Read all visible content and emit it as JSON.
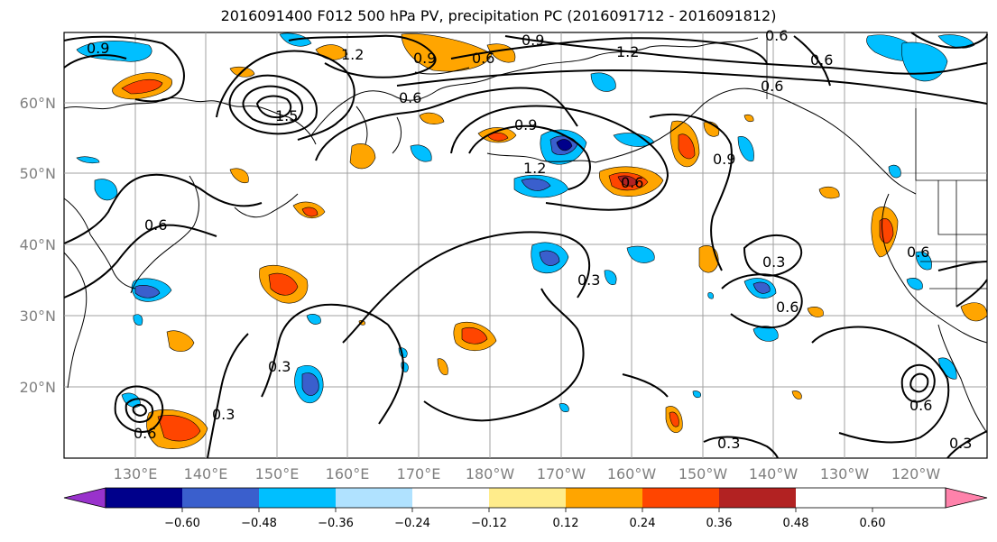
{
  "title": "2016091400 F012 500 hPa PV, precipitation PC (2016091712 - 2016091812)",
  "lat_labels": [
    "60°N",
    "50°N",
    "40°N",
    "30°N",
    "20°N"
  ],
  "lon_labels": [
    "130°E",
    "140°E",
    "150°E",
    "160°E",
    "170°E",
    "180°W",
    "170°W",
    "160°W",
    "150°W",
    "140°W",
    "130°W",
    "120°W"
  ],
  "contour_labels": [
    "0.9",
    "1.2",
    "0.9",
    "0.6",
    "1.2",
    "0.9",
    "0.6",
    "1.5",
    "0.6",
    "0.9",
    "0.6",
    "1.2",
    "0.6",
    "0.9",
    "0.6",
    "0.3",
    "0.6",
    "0.3",
    "0.3",
    "0.3",
    "0.6",
    "0.6",
    "0.3",
    "0.3",
    "0.6",
    "0.6"
  ],
  "colorbar": {
    "ticks": [
      "−0.60",
      "−0.48",
      "−0.36",
      "−0.24",
      "−0.12",
      "0.12",
      "0.24",
      "0.36",
      "0.48",
      "0.60"
    ],
    "colors": [
      "#9932cc",
      "#00008b",
      "#3a5fcd",
      "#00bfff",
      "#b0e2ff",
      "#ffffff",
      "#ffec8b",
      "#ffa500",
      "#ff4500",
      "#b22222",
      "#ff82ab"
    ]
  }
}
